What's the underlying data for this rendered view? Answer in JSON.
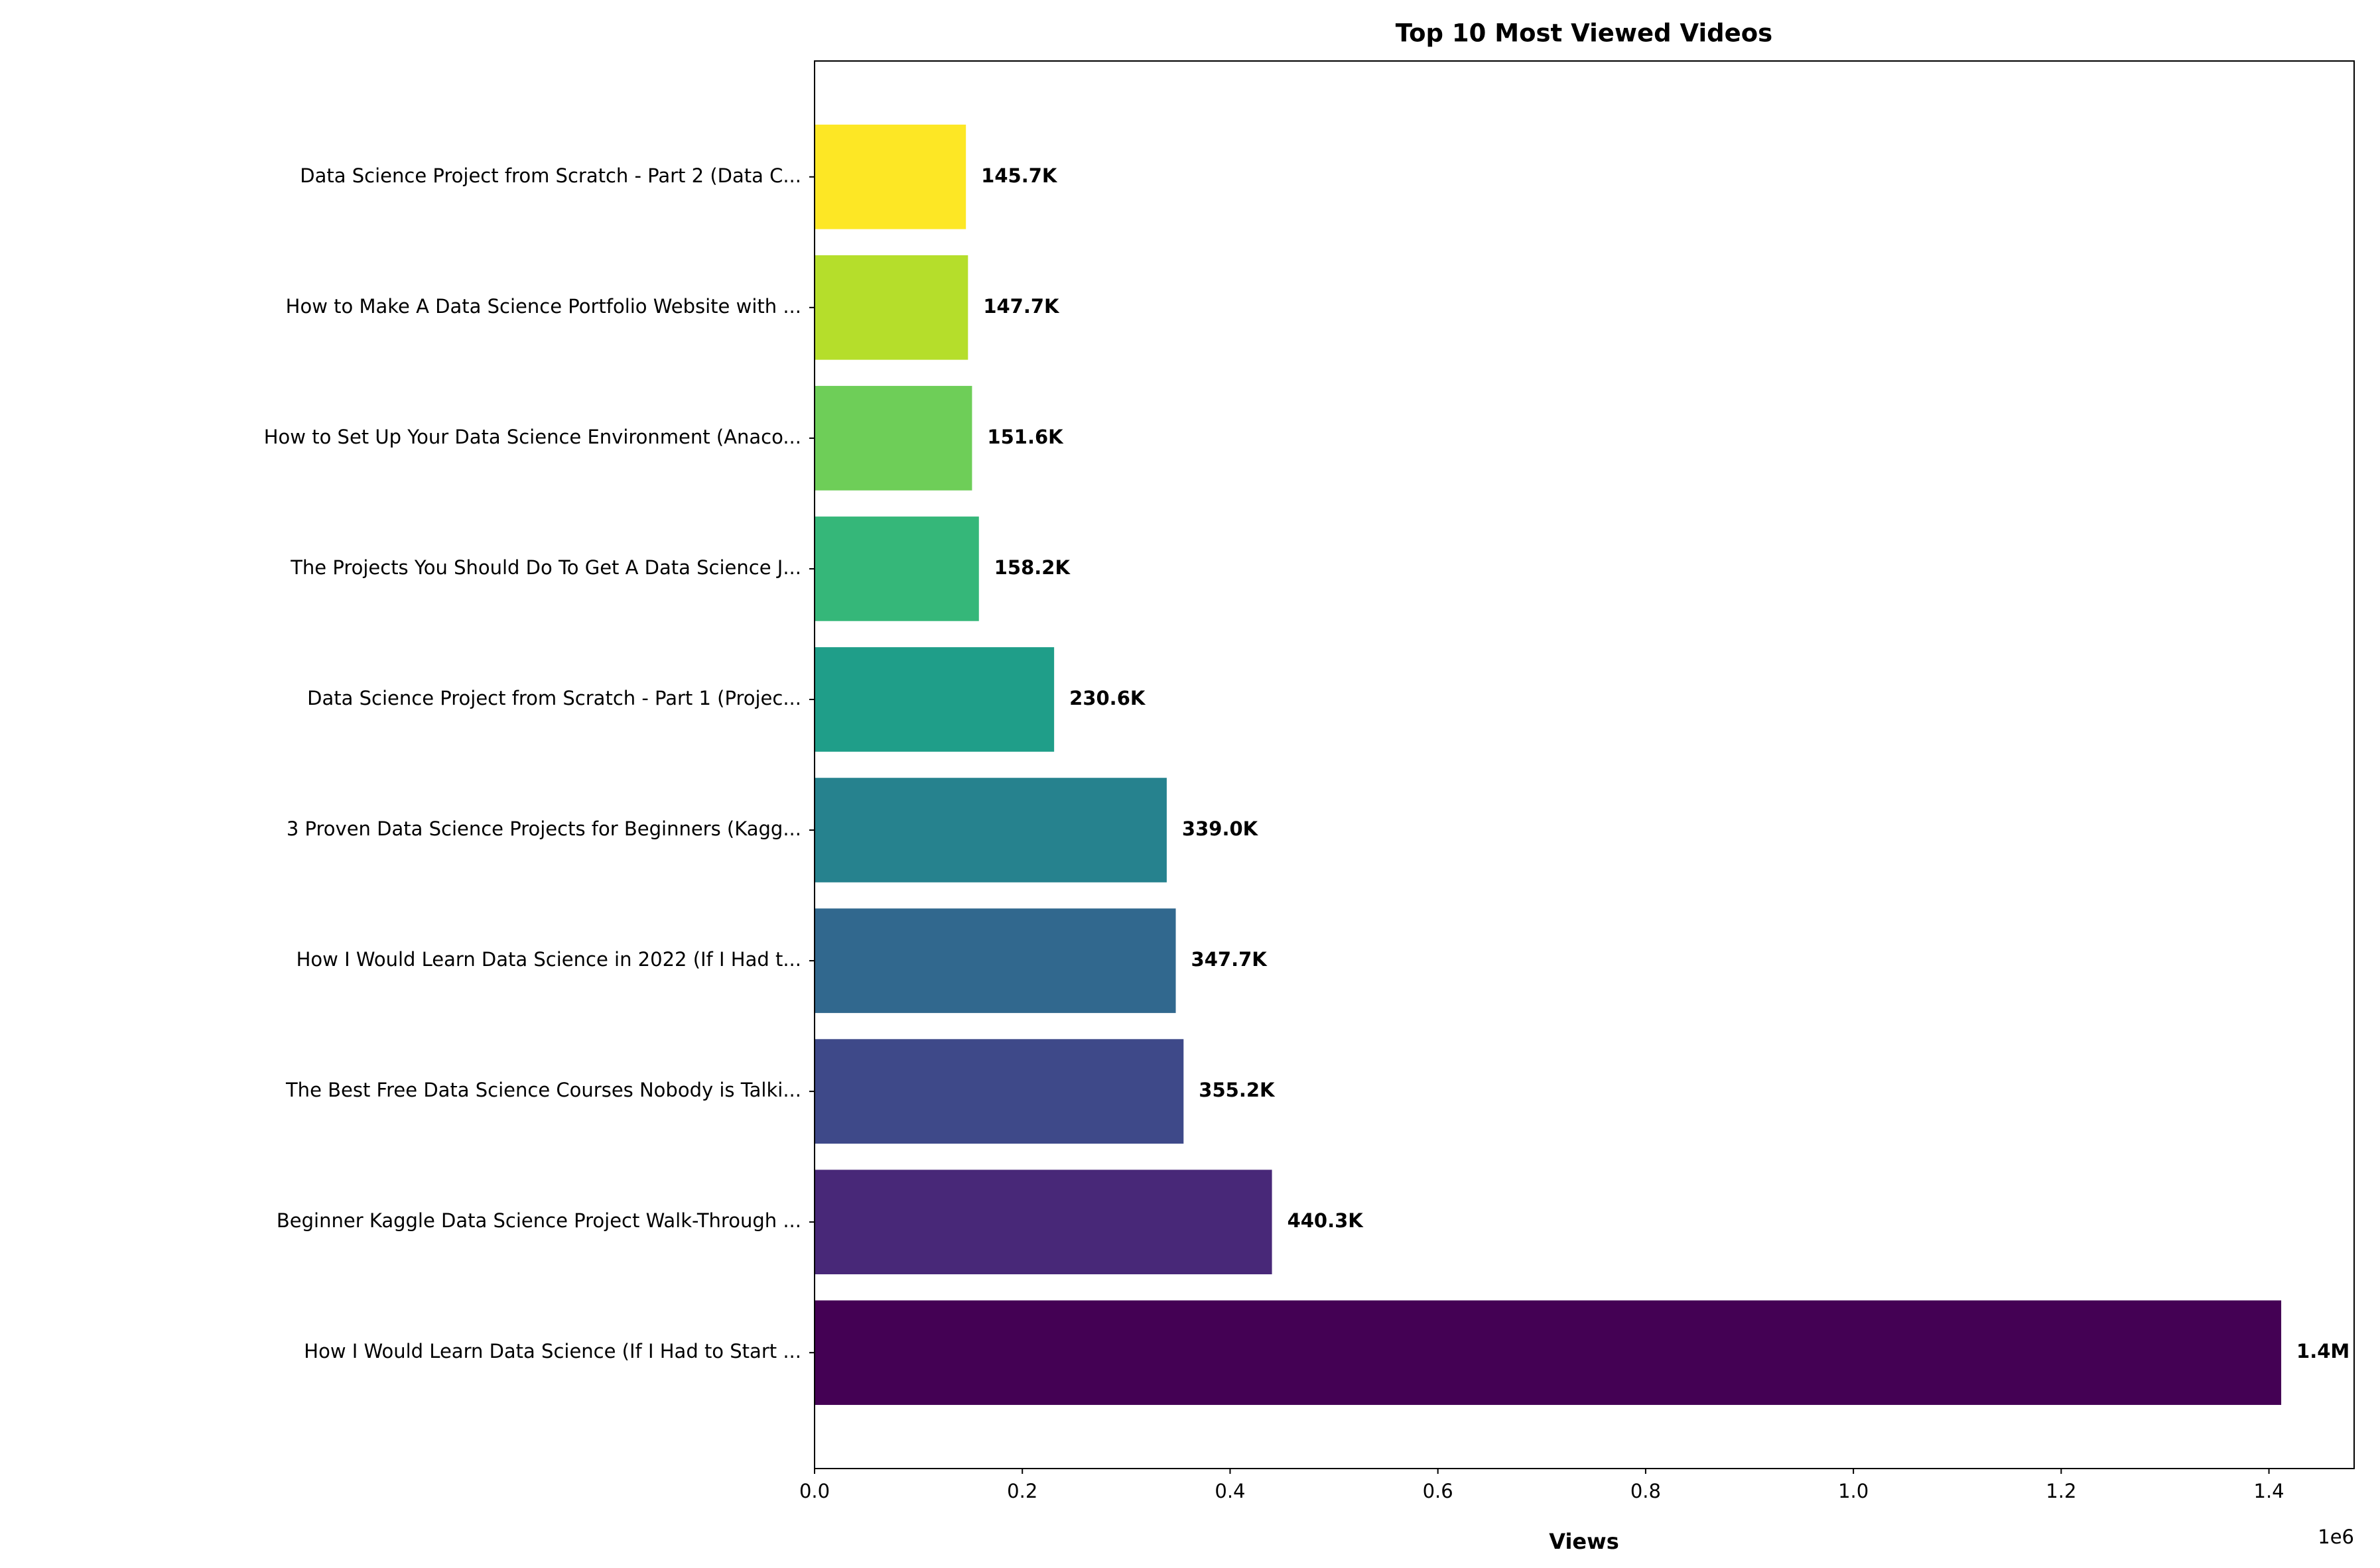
{
  "chart_data": {
    "type": "barh",
    "title": "Top 10 Most Viewed Videos",
    "x_label": "Views",
    "x_offset_label": "1e6",
    "categories": [
      "How I Would Learn Data Science (If I Had to Start ...",
      "Beginner Kaggle Data Science Project Walk-Through ...",
      "The Best Free Data Science Courses Nobody is Talki...",
      "How I Would Learn Data Science in 2022 (If I Had t...",
      "3 Proven Data Science Projects for Beginners (Kagg...",
      "Data Science Project from Scratch - Part 1 (Projec...",
      "The Projects You Should Do To Get A Data Science J...",
      "How to Set Up Your Data Science Environment (Anaco...",
      "How to Make A Data Science Portfolio Website with ...",
      "Data Science Project from Scratch - Part 2 (Data C..."
    ],
    "values": [
      1411800,
      440300,
      355200,
      347700,
      339000,
      230600,
      158200,
      151600,
      147700,
      145700
    ],
    "value_labels": [
      "1.4M",
      "440.3K",
      "355.2K",
      "347.7K",
      "339.0K",
      "230.6K",
      "158.2K",
      "151.6K",
      "147.7K",
      "145.7K"
    ],
    "colors": [
      "#440154",
      "#482878",
      "#3e4989",
      "#31688e",
      "#26828e",
      "#1f9e89",
      "#35b779",
      "#6ece58",
      "#b5de2b",
      "#fde725"
    ],
    "xlim": [
      0,
      1482000
    ],
    "xticks": [
      {
        "value": 0,
        "label": "0.0"
      },
      {
        "value": 200000,
        "label": "0.2"
      },
      {
        "value": 400000,
        "label": "0.4"
      },
      {
        "value": 600000,
        "label": "0.6"
      },
      {
        "value": 800000,
        "label": "0.8"
      },
      {
        "value": 1000000,
        "label": "1.0"
      },
      {
        "value": 1200000,
        "label": "1.2"
      },
      {
        "value": 1400000,
        "label": "1.4"
      }
    ]
  }
}
